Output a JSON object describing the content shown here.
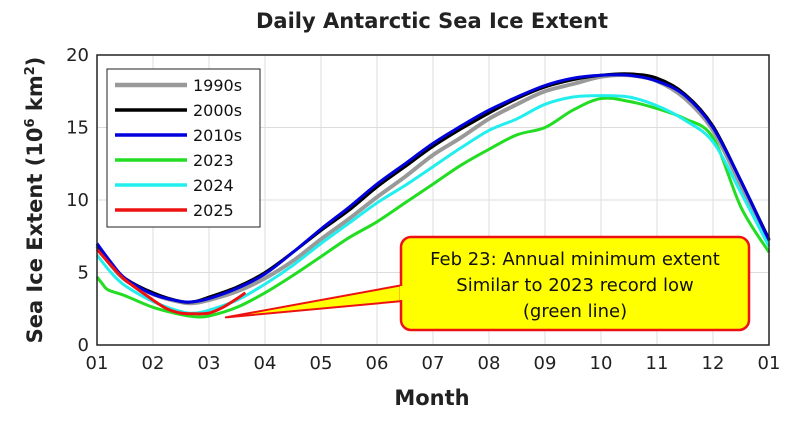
{
  "chart_data": {
    "type": "line",
    "title": "Daily Antarctic Sea Ice Extent",
    "xlabel": "Month",
    "ylabel": "Sea Ice Extent (10",
    "ylabel_sup": "6",
    "ylabel_unit": " km",
    "ylabel_sup2": "2",
    "ylabel_close": ")",
    "xlim": [
      0,
      12
    ],
    "ylim": [
      0,
      20
    ],
    "x_ticks": [
      {
        "value": 0,
        "label": "01"
      },
      {
        "value": 1,
        "label": "02"
      },
      {
        "value": 2,
        "label": "03"
      },
      {
        "value": 3,
        "label": "04"
      },
      {
        "value": 4,
        "label": "05"
      },
      {
        "value": 5,
        "label": "06"
      },
      {
        "value": 6,
        "label": "07"
      },
      {
        "value": 7,
        "label": "08"
      },
      {
        "value": 8,
        "label": "09"
      },
      {
        "value": 9,
        "label": "10"
      },
      {
        "value": 10,
        "label": "11"
      },
      {
        "value": 11,
        "label": "12"
      },
      {
        "value": 12,
        "label": "01"
      }
    ],
    "y_ticks": [
      {
        "value": 0,
        "label": "0"
      },
      {
        "value": 5,
        "label": "5"
      },
      {
        "value": 10,
        "label": "10"
      },
      {
        "value": 15,
        "label": "15"
      },
      {
        "value": 20,
        "label": "20"
      }
    ],
    "grid": true,
    "legend_position": "top-left",
    "series": [
      {
        "name": "1990s",
        "color": "#999999",
        "width": 4,
        "x": [
          0,
          0.25,
          0.5,
          1,
          1.5,
          1.75,
          2,
          2.5,
          3,
          3.5,
          4,
          4.5,
          5,
          5.5,
          6,
          6.5,
          7,
          7.5,
          8,
          8.5,
          9,
          9.5,
          10,
          10.5,
          11,
          11.5,
          12
        ],
        "y": [
          6.8,
          5.5,
          4.5,
          3.5,
          2.95,
          2.9,
          3.1,
          3.7,
          4.6,
          5.8,
          7.3,
          8.7,
          10.2,
          11.6,
          13.1,
          14.3,
          15.6,
          16.6,
          17.5,
          18.0,
          18.5,
          18.6,
          18.2,
          17.0,
          14.8,
          11.0,
          7.2
        ]
      },
      {
        "name": "2000s",
        "color": "#000000",
        "width": 3,
        "x": [
          0,
          0.25,
          0.5,
          1,
          1.5,
          1.75,
          2,
          2.5,
          3,
          3.5,
          4,
          4.5,
          5,
          5.5,
          6,
          6.5,
          7,
          7.5,
          8,
          8.5,
          9,
          9.5,
          10,
          10.5,
          11,
          11.5,
          12
        ],
        "y": [
          6.9,
          5.6,
          4.6,
          3.6,
          3.0,
          3.0,
          3.3,
          4.0,
          5.0,
          6.4,
          7.9,
          9.3,
          10.9,
          12.3,
          13.7,
          14.9,
          16.0,
          17.0,
          17.8,
          18.3,
          18.6,
          18.7,
          18.4,
          17.3,
          15.1,
          11.3,
          7.3
        ]
      },
      {
        "name": "2010s",
        "color": "#0000dd",
        "width": 3,
        "x": [
          0,
          0.25,
          0.5,
          1,
          1.5,
          1.75,
          2,
          2.5,
          3,
          3.5,
          4,
          4.5,
          5,
          5.5,
          6,
          6.5,
          7,
          7.5,
          8,
          8.5,
          9,
          9.5,
          10,
          10.5,
          11,
          11.5,
          12
        ],
        "y": [
          7.0,
          5.7,
          4.6,
          3.5,
          3.0,
          3.0,
          3.2,
          3.9,
          4.9,
          6.4,
          8.0,
          9.5,
          11.1,
          12.5,
          13.9,
          15.1,
          16.2,
          17.1,
          17.9,
          18.4,
          18.6,
          18.6,
          18.2,
          17.2,
          15.0,
          11.3,
          7.2
        ]
      },
      {
        "name": "2023",
        "color": "#22dd22",
        "width": 3,
        "x": [
          0,
          0.1,
          0.2,
          0.5,
          1,
          1.5,
          1.75,
          2,
          2.5,
          3,
          3.5,
          4,
          4.5,
          5,
          5.5,
          6,
          6.5,
          7,
          7.5,
          8,
          8.5,
          9,
          9.5,
          10,
          10.5,
          11,
          11.5,
          12
        ],
        "y": [
          4.7,
          4.2,
          3.8,
          3.4,
          2.6,
          2.1,
          1.95,
          2.0,
          2.6,
          3.6,
          4.8,
          6.1,
          7.4,
          8.5,
          9.8,
          11.1,
          12.4,
          13.5,
          14.5,
          15.0,
          16.2,
          17.0,
          16.8,
          16.3,
          15.6,
          14.3,
          9.5,
          6.4
        ]
      },
      {
        "name": "2024",
        "color": "#22eeee",
        "width": 3,
        "x": [
          0,
          0.25,
          0.5,
          1,
          1.5,
          1.75,
          2,
          2.5,
          3,
          3.5,
          4,
          4.5,
          5,
          5.5,
          6,
          6.5,
          7,
          7.5,
          8,
          8.5,
          9,
          9.5,
          10,
          10.5,
          11,
          11.5,
          12
        ],
        "y": [
          6.2,
          5.0,
          4.1,
          3.0,
          2.3,
          2.2,
          2.4,
          3.1,
          4.2,
          5.5,
          7.0,
          8.4,
          9.8,
          11.0,
          12.3,
          13.6,
          14.8,
          15.6,
          16.6,
          17.1,
          17.2,
          17.1,
          16.5,
          15.5,
          14.0,
          10.5,
          6.8
        ]
      },
      {
        "name": "2025",
        "color": "#ee1111",
        "width": 3,
        "x": [
          0,
          0.25,
          0.5,
          1,
          1.25,
          1.5,
          1.75,
          2,
          2.25,
          2.5,
          2.65
        ],
        "y": [
          6.6,
          5.5,
          4.5,
          3.1,
          2.5,
          2.2,
          2.15,
          2.2,
          2.6,
          3.2,
          3.6
        ]
      }
    ],
    "annotation": {
      "lines": [
        "Feb 23: Annual minimum extent",
        "Similar to 2023 record low",
        "(green line)"
      ],
      "pointer": {
        "x": 2.3,
        "y": 1.9
      },
      "fill": "#ffff00",
      "border": "#ee1111"
    }
  }
}
